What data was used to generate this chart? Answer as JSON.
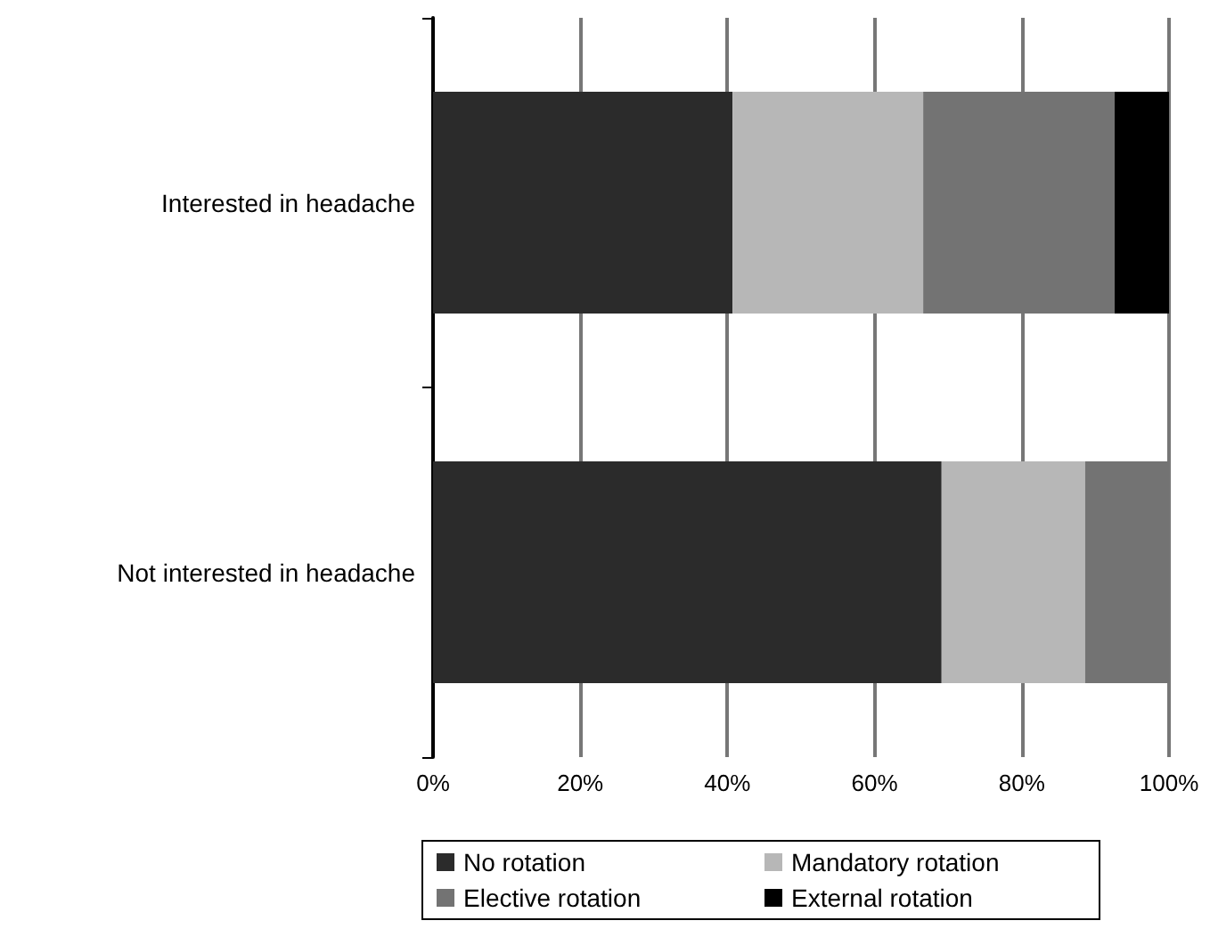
{
  "chart_data": {
    "type": "bar",
    "orientation": "horizontal",
    "stacked": true,
    "categories": [
      "Interested in headache",
      "Not interested in headache"
    ],
    "series": [
      {
        "name": "No rotation",
        "color": "#2b2b2b",
        "values": [
          40.7,
          69.1
        ]
      },
      {
        "name": "Mandatory rotation",
        "color": "#b7b7b7",
        "values": [
          25.9,
          19.5
        ]
      },
      {
        "name": "Elective rotation",
        "color": "#737373",
        "values": [
          26.0,
          11.4
        ]
      },
      {
        "name": "External rotation",
        "color": "#000000",
        "values": [
          7.4,
          0
        ]
      }
    ],
    "xlim": [
      0,
      100
    ],
    "xticks": [
      {
        "value": 0,
        "label": "0%"
      },
      {
        "value": 20,
        "label": "20%"
      },
      {
        "value": 40,
        "label": "40%"
      },
      {
        "value": 60,
        "label": "60%"
      },
      {
        "value": 80,
        "label": "80%"
      },
      {
        "value": 100,
        "label": "100%"
      }
    ],
    "grid": "x",
    "legend": "bottom"
  }
}
